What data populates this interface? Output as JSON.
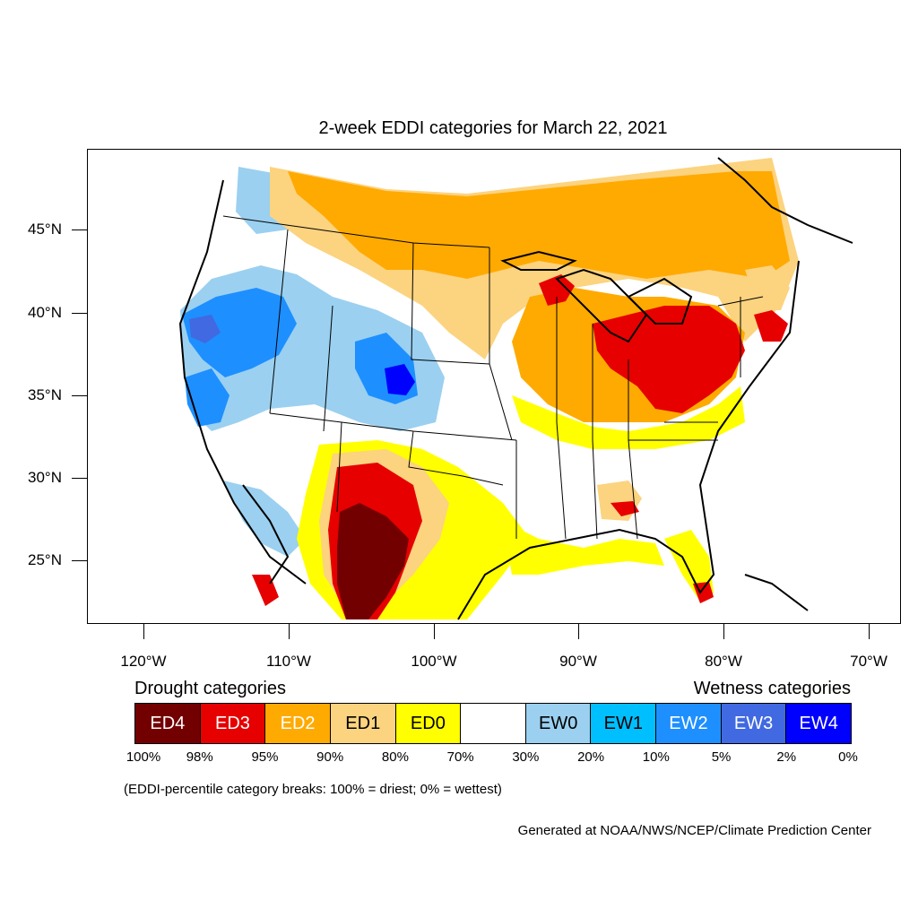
{
  "title": "2-week EDDI categories for March 22, 2021",
  "latitude_labels": [
    "45°N",
    "40°N",
    "35°N",
    "30°N",
    "25°N"
  ],
  "longitude_labels": [
    "120°W",
    "110°W",
    "100°W",
    "90°W",
    "80°W",
    "70°W"
  ],
  "drought_heading": "Drought categories",
  "wetness_heading": "Wetness categories",
  "legend": [
    {
      "label": "ED4",
      "color": "#730000",
      "text_color": "#ffffff"
    },
    {
      "label": "ED3",
      "color": "#e60000",
      "text_color": "#ffffff"
    },
    {
      "label": "ED2",
      "color": "#ffaa00",
      "text_color": "#ffffff"
    },
    {
      "label": "ED1",
      "color": "#fcd37f",
      "text_color": "#000000"
    },
    {
      "label": "ED0",
      "color": "#ffff00",
      "text_color": "#000000"
    },
    {
      "label": "",
      "color": "#ffffff",
      "text_color": "#000000"
    },
    {
      "label": "EW0",
      "color": "#9bd0f0",
      "text_color": "#000000"
    },
    {
      "label": "EW1",
      "color": "#00bfff",
      "text_color": "#000000"
    },
    {
      "label": "EW2",
      "color": "#1e8fff",
      "text_color": "#ffffff"
    },
    {
      "label": "EW3",
      "color": "#4169e1",
      "text_color": "#ffffff"
    },
    {
      "label": "EW4",
      "color": "#0000ff",
      "text_color": "#ffffff"
    }
  ],
  "percentiles": [
    "100%",
    "98%",
    "95%",
    "90%",
    "80%",
    "70%",
    "30%",
    "20%",
    "10%",
    "5%",
    "2%",
    "0%"
  ],
  "note": "(EDDI-percentile category breaks: 100% = driest; 0% = wettest)",
  "credit": "Generated at NOAA/NWS/NCEP/Climate Prediction Center"
}
